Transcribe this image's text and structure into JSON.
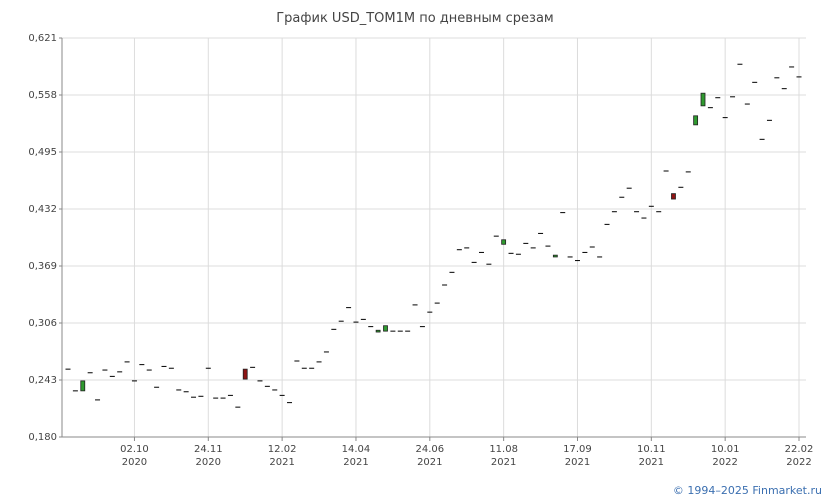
{
  "chart_data": {
    "type": "candlestick",
    "title": "График USD_TOM1M по дневным срезам",
    "footer": "© 1994–2025 Finmarket.ru",
    "categories": [
      null,
      null,
      null,
      null,
      null,
      null,
      null,
      null,
      null,
      "02.10\n2020",
      null,
      null,
      null,
      null,
      null,
      null,
      null,
      null,
      null,
      "24.11\n2020",
      null,
      null,
      null,
      null,
      null,
      null,
      null,
      null,
      null,
      "12.02\n2021",
      null,
      null,
      null,
      null,
      null,
      null,
      null,
      null,
      null,
      "14.04\n2021",
      null,
      null,
      null,
      null,
      null,
      null,
      null,
      null,
      null,
      "24.06\n2021",
      null,
      null,
      null,
      null,
      null,
      null,
      null,
      null,
      null,
      "11.08\n2021",
      null,
      null,
      null,
      null,
      null,
      null,
      null,
      null,
      null,
      "17.09\n2021",
      null,
      null,
      null,
      null,
      null,
      null,
      null,
      null,
      null,
      "10.11\n2021",
      null,
      null,
      null,
      null,
      null,
      null,
      null,
      null,
      null,
      "10.01\n2022",
      null,
      null,
      null,
      null,
      null,
      null,
      null,
      null,
      null,
      "22.02\n2022"
    ],
    "open": [
      0.255,
      0.231,
      0.231,
      0.251,
      0.221,
      0.254,
      0.247,
      0.252,
      0.263,
      0.242,
      0.26,
      0.254,
      0.235,
      0.258,
      0.256,
      0.232,
      0.23,
      0.224,
      0.225,
      0.256,
      0.223,
      0.223,
      0.226,
      0.213,
      0.255,
      0.257,
      0.242,
      0.236,
      0.232,
      0.226,
      0.218,
      0.264,
      0.256,
      0.256,
      0.263,
      0.274,
      0.299,
      0.308,
      0.323,
      0.307,
      0.31,
      0.302,
      0.296,
      0.297,
      0.297,
      0.297,
      0.297,
      0.326,
      0.302,
      0.318,
      0.328,
      0.348,
      0.362,
      0.387,
      0.389,
      0.373,
      0.384,
      0.371,
      0.402,
      0.393,
      0.383,
      0.382,
      0.394,
      0.389,
      0.405,
      0.391,
      0.379,
      0.428,
      0.379,
      0.375,
      0.384,
      0.39,
      0.379,
      0.415,
      0.429,
      0.445,
      0.455,
      0.429,
      0.422,
      0.435,
      0.429,
      0.474,
      0.449,
      0.456,
      0.473,
      0.525,
      0.546,
      0.544,
      0.555,
      0.533,
      0.556,
      0.592,
      0.548,
      0.572,
      0.509,
      0.53,
      0.577,
      0.565,
      0.589,
      0.578
    ],
    "close": [
      0.255,
      0.231,
      0.242,
      0.251,
      0.221,
      0.254,
      0.247,
      0.252,
      0.263,
      0.242,
      0.26,
      0.254,
      0.235,
      0.258,
      0.256,
      0.232,
      0.23,
      0.224,
      0.225,
      0.256,
      0.223,
      0.223,
      0.226,
      0.213,
      0.244,
      0.257,
      0.242,
      0.236,
      0.232,
      0.226,
      0.218,
      0.264,
      0.256,
      0.256,
      0.263,
      0.274,
      0.299,
      0.308,
      0.323,
      0.307,
      0.31,
      0.302,
      0.298,
      0.303,
      0.297,
      0.297,
      0.297,
      0.326,
      0.302,
      0.318,
      0.328,
      0.348,
      0.362,
      0.387,
      0.389,
      0.373,
      0.384,
      0.371,
      0.402,
      0.398,
      0.383,
      0.382,
      0.394,
      0.389,
      0.405,
      0.391,
      0.381,
      0.428,
      0.379,
      0.375,
      0.384,
      0.39,
      0.379,
      0.415,
      0.429,
      0.445,
      0.455,
      0.429,
      0.422,
      0.435,
      0.429,
      0.474,
      0.443,
      0.456,
      0.473,
      0.535,
      0.56,
      0.544,
      0.555,
      0.533,
      0.556,
      0.592,
      0.548,
      0.572,
      0.509,
      0.53,
      0.577,
      0.565,
      0.589,
      0.578
    ],
    "up_color": "#2f9a2f",
    "down_color": "#8e1414",
    "flat_color": "#000000",
    "ylim": [
      0.18,
      0.621
    ],
    "yticks": [
      {
        "value": 0.18,
        "label": "0,180"
      },
      {
        "value": 0.243,
        "label": "0,243"
      },
      {
        "value": 0.306,
        "label": "0,306"
      },
      {
        "value": 0.369,
        "label": "0,369"
      },
      {
        "value": 0.432,
        "label": "0,432"
      },
      {
        "value": 0.495,
        "label": "0,495"
      },
      {
        "value": 0.558,
        "label": "0,558"
      },
      {
        "value": 0.621,
        "label": "0,621"
      }
    ],
    "grid": true
  }
}
